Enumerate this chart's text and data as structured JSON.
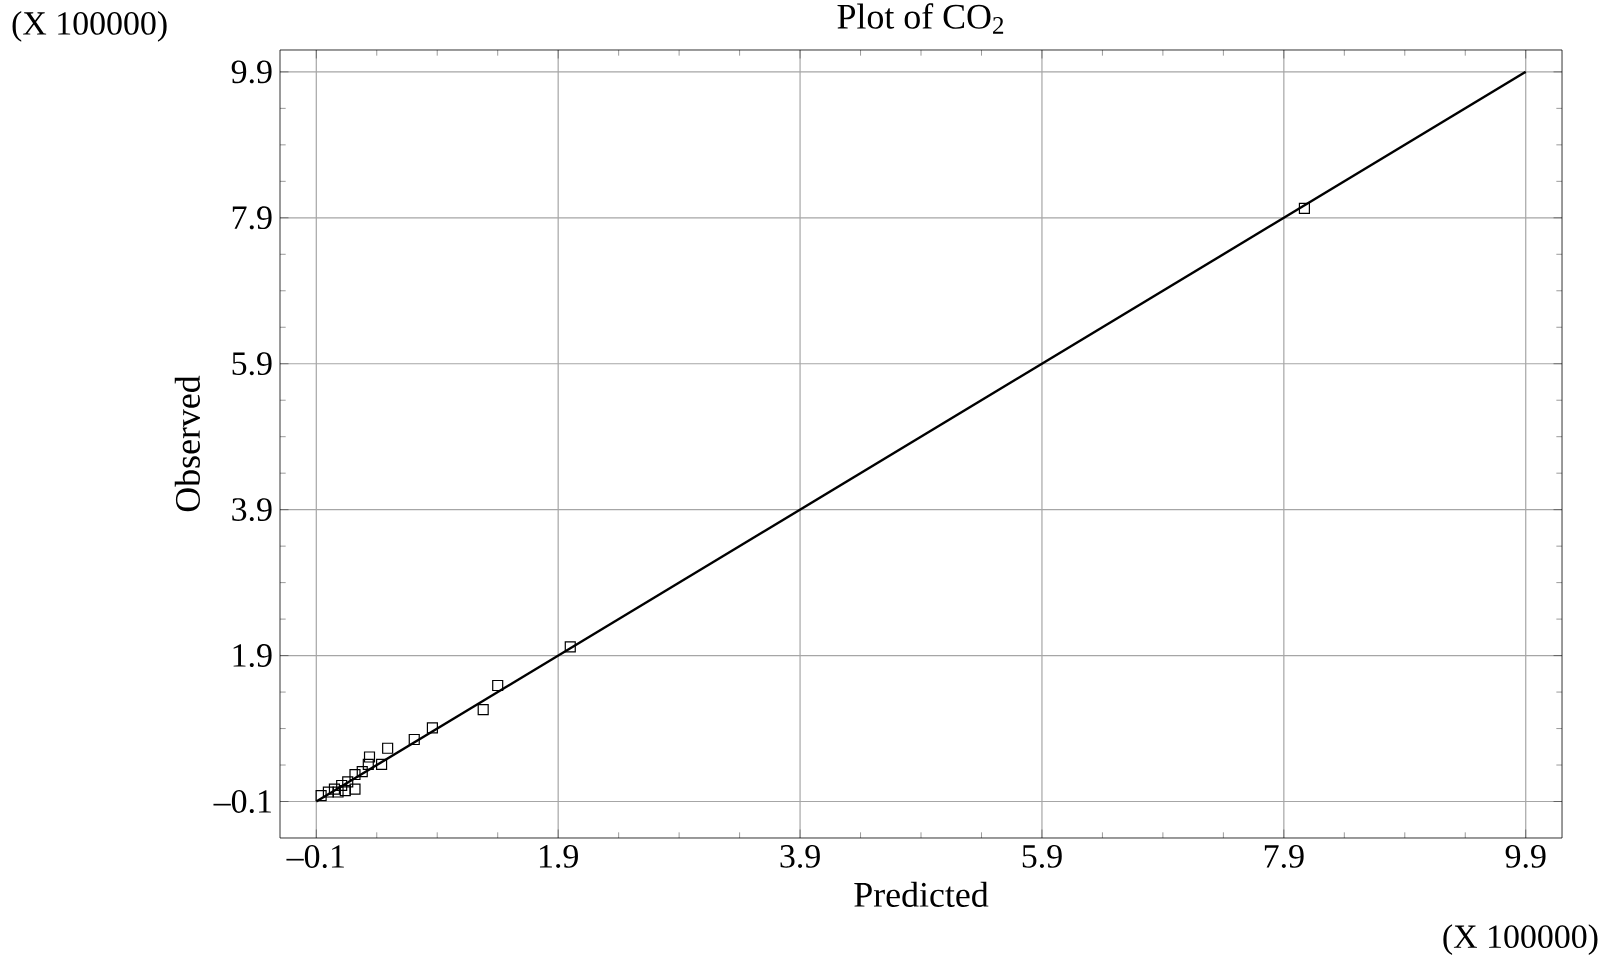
{
  "chart_data": {
    "type": "scatter",
    "title": "Plot of CO$_{2}$",
    "xlabel": "Predicted",
    "ylabel": "Observed",
    "annotations": [
      "(X 100000)",
      "(X 100000)"
    ],
    "xlim": [
      -0.4,
      10.2
    ],
    "ylim": [
      -0.6,
      10.2
    ],
    "xticks": [
      {
        "value": -0.1,
        "label": "–0.1"
      },
      1.9,
      3.9,
      5.9,
      7.9,
      9.9
    ],
    "yticks": [
      {
        "value": -0.1,
        "label": "–0.1"
      },
      1.9,
      3.9,
      5.9,
      7.9,
      9.9
    ],
    "grid": true,
    "series": [
      {
        "marker": "square",
        "color": "#000000",
        "x": [
          2.0,
          1.4,
          1.28,
          0.86,
          0.71,
          0.49,
          0.44,
          0.34,
          0.33,
          0.28,
          0.22,
          0.22,
          0.16,
          0.11,
          0.05,
          0.0,
          -0.06,
          0.14,
          0.08,
          8.07
        ],
        "values": [
          2.02,
          1.49,
          1.16,
          0.91,
          0.75,
          0.63,
          0.41,
          0.51,
          0.41,
          0.31,
          0.27,
          0.07,
          0.17,
          0.12,
          0.07,
          0.03,
          -0.02,
          0.05,
          0.03,
          8.03
        ]
      },
      {
        "type": "line",
        "marker": "none",
        "color": "#000000",
        "x": [
          -0.1,
          9.9
        ],
        "values": [
          -0.1,
          9.9
        ]
      }
    ]
  }
}
